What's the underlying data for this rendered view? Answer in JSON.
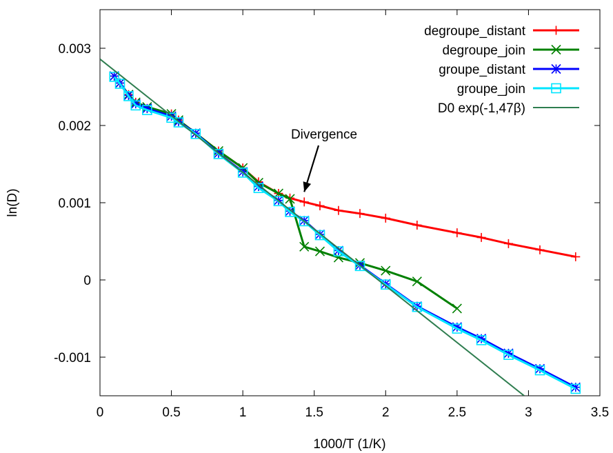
{
  "chart_data": {
    "type": "line",
    "xlabel": "1000/T (1/K)",
    "ylabel": "ln(D)",
    "xlim": [
      0,
      3.5
    ],
    "ylim": [
      -0.0015,
      0.0035
    ],
    "xticks": [
      {
        "v": 0,
        "label": "0"
      },
      {
        "v": 0.5,
        "label": "0.5"
      },
      {
        "v": 1,
        "label": "1"
      },
      {
        "v": 1.5,
        "label": "1.5"
      },
      {
        "v": 2,
        "label": "2"
      },
      {
        "v": 2.5,
        "label": "2.5"
      },
      {
        "v": 3,
        "label": "3"
      },
      {
        "v": 3.5,
        "label": "3.5"
      }
    ],
    "yticks": [
      {
        "v": -0.001,
        "label": "-0.001"
      },
      {
        "v": 0,
        "label": "0"
      },
      {
        "v": 0.001,
        "label": "0.001"
      },
      {
        "v": 0.002,
        "label": "0.002"
      },
      {
        "v": 0.003,
        "label": "0.003"
      }
    ],
    "grid": false,
    "legend_position": "top-right",
    "series": [
      {
        "name": "degroupe_distant",
        "color": "#ff0000",
        "marker": "plus",
        "x": [
          0.1,
          0.14,
          0.2,
          0.25,
          0.33,
          0.5,
          0.55,
          0.67,
          0.83,
          1.0,
          1.11,
          1.25,
          1.33,
          1.43,
          1.54,
          1.67,
          1.82,
          2.0,
          2.22,
          2.5,
          2.67,
          2.86,
          3.08,
          3.33
        ],
        "y": [
          0.00264,
          0.00255,
          0.0024,
          0.0023,
          0.00222,
          0.00215,
          0.00207,
          0.0019,
          0.00167,
          0.00145,
          0.00127,
          0.00112,
          0.00106,
          0.00101,
          0.00096,
          0.0009,
          0.00086,
          0.0008,
          0.00071,
          0.00061,
          0.00055,
          0.00047,
          0.00039,
          0.0003
        ]
      },
      {
        "name": "degroupe_join",
        "color": "#008000",
        "marker": "cross",
        "x": [
          0.1,
          0.14,
          0.2,
          0.25,
          0.33,
          0.5,
          0.55,
          0.67,
          0.83,
          1.0,
          1.11,
          1.25,
          1.33,
          1.43,
          1.54,
          1.67,
          1.82,
          2.0,
          2.22,
          2.5
        ],
        "y": [
          0.00264,
          0.00255,
          0.0024,
          0.0023,
          0.00224,
          0.00215,
          0.00207,
          0.0019,
          0.00167,
          0.00145,
          0.00126,
          0.00112,
          0.00105,
          0.00043,
          0.00037,
          0.00029,
          0.00022,
          0.00012,
          -2e-05,
          -0.00037
        ]
      },
      {
        "name": "groupe_distant",
        "color": "#0000ff",
        "marker": "star",
        "x": [
          0.1,
          0.14,
          0.2,
          0.25,
          0.33,
          0.5,
          0.55,
          0.67,
          0.83,
          1.0,
          1.11,
          1.25,
          1.33,
          1.43,
          1.54,
          1.67,
          1.82,
          2.0,
          2.22,
          2.5,
          2.67,
          2.86,
          3.08,
          3.33
        ],
        "y": [
          0.00264,
          0.00255,
          0.00239,
          0.00228,
          0.00222,
          0.00212,
          0.00205,
          0.0019,
          0.00164,
          0.0014,
          0.00121,
          0.00103,
          0.00089,
          0.00077,
          0.00059,
          0.00038,
          0.00019,
          -5e-05,
          -0.00034,
          -0.00061,
          -0.00076,
          -0.00095,
          -0.00115,
          -0.00139
        ]
      },
      {
        "name": "groupe_join",
        "color": "#00e5ff",
        "marker": "square",
        "x": [
          0.1,
          0.14,
          0.2,
          0.25,
          0.33,
          0.5,
          0.55,
          0.67,
          0.83,
          1.0,
          1.11,
          1.25,
          1.33,
          1.43,
          1.54,
          1.67,
          1.82,
          2.0,
          2.22,
          2.5,
          2.67,
          2.86,
          3.08,
          3.33
        ],
        "y": [
          0.00263,
          0.00254,
          0.00238,
          0.00226,
          0.0022,
          0.0021,
          0.00204,
          0.00189,
          0.00163,
          0.00139,
          0.00119,
          0.00102,
          0.00088,
          0.00076,
          0.00058,
          0.00037,
          0.00018,
          -6e-05,
          -0.00035,
          -0.00063,
          -0.00078,
          -0.00097,
          -0.00117,
          -0.00141
        ]
      },
      {
        "name": "D0 exp(-1,47β)",
        "color": "#2e7d4f",
        "marker": "none",
        "x": [
          0,
          2.97
        ],
        "y": [
          0.00286,
          -0.0015
        ]
      }
    ],
    "annotations": [
      {
        "text": "Divergence",
        "x": 1.43,
        "y": 0.00114
      }
    ]
  }
}
